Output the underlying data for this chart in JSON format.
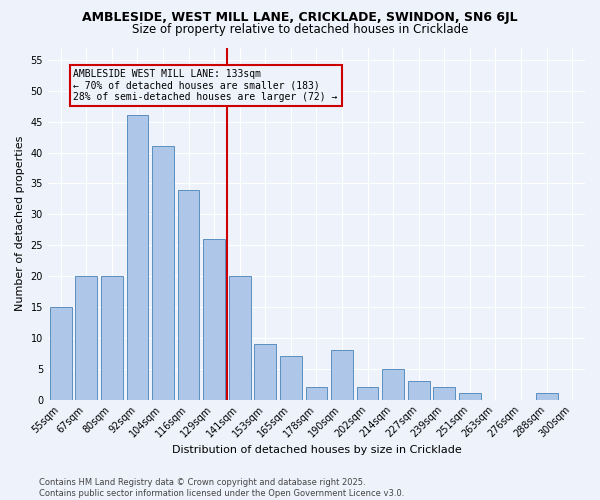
{
  "title": "AMBLESIDE, WEST MILL LANE, CRICKLADE, SWINDON, SN6 6JL",
  "subtitle": "Size of property relative to detached houses in Cricklade",
  "xlabel": "Distribution of detached houses by size in Cricklade",
  "ylabel": "Number of detached properties",
  "categories": [
    "55sqm",
    "67sqm",
    "80sqm",
    "92sqm",
    "104sqm",
    "116sqm",
    "129sqm",
    "141sqm",
    "153sqm",
    "165sqm",
    "178sqm",
    "190sqm",
    "202sqm",
    "214sqm",
    "227sqm",
    "239sqm",
    "251sqm",
    "263sqm",
    "276sqm",
    "288sqm",
    "300sqm"
  ],
  "values": [
    15,
    20,
    20,
    46,
    41,
    34,
    26,
    20,
    9,
    7,
    2,
    8,
    2,
    5,
    3,
    2,
    1,
    0,
    0,
    1,
    0
  ],
  "bar_color": "#aec6e8",
  "bar_edge_color": "#5a8fc0",
  "vline_index": 7,
  "vline_color": "#cc0000",
  "annotation_line1": "AMBLESIDE WEST MILL LANE: 133sqm",
  "annotation_line2": "← 70% of detached houses are smaller (183)",
  "annotation_line3": "28% of semi-detached houses are larger (72) →",
  "annotation_box_color": "#cc0000",
  "ylim": [
    0,
    57
  ],
  "yticks": [
    0,
    5,
    10,
    15,
    20,
    25,
    30,
    35,
    40,
    45,
    50,
    55
  ],
  "footer": "Contains HM Land Registry data © Crown copyright and database right 2025.\nContains public sector information licensed under the Open Government Licence v3.0.",
  "bg_color": "#eef2fb",
  "grid_color": "#ffffff",
  "title_fontsize": 9,
  "subtitle_fontsize": 8.5,
  "tick_fontsize": 7,
  "label_fontsize": 8,
  "footer_fontsize": 6
}
